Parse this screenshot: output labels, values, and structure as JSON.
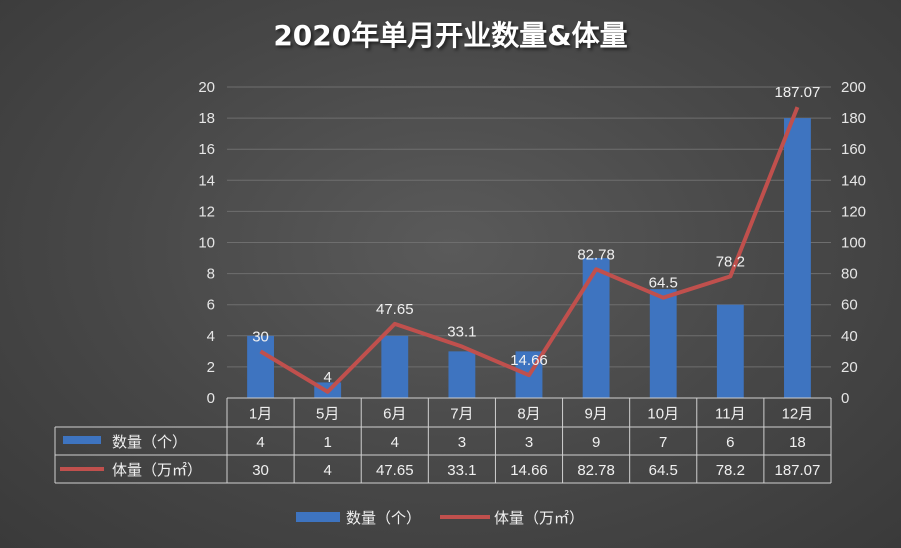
{
  "chart_data": {
    "type": "bar",
    "title": "2020年单月开业数量&体量",
    "categories": [
      "1月",
      "5月",
      "6月",
      "7月",
      "8月",
      "9月",
      "10月",
      "11月",
      "12月"
    ],
    "series": [
      {
        "name": "数量（个）",
        "type": "bar",
        "axis": "left",
        "color": "#3e74c0",
        "values": [
          4,
          1,
          4,
          3,
          3,
          9,
          7,
          6,
          18
        ],
        "value_labels": [
          "4",
          "1",
          "4",
          "3",
          "3",
          "9",
          "7",
          "6",
          "18"
        ]
      },
      {
        "name": "体量（万㎡）",
        "type": "line",
        "axis": "right",
        "color": "#c0504d",
        "values": [
          30,
          4,
          47.65,
          33.1,
          14.66,
          82.78,
          64.5,
          78.2,
          187.07
        ],
        "value_labels": [
          "30",
          "4",
          "47.65",
          "33.1",
          "14.66",
          "82.78",
          "64.5",
          "78.2",
          "187.07"
        ]
      }
    ],
    "y_left": {
      "range": [
        0,
        20
      ],
      "ticks": [
        "0",
        "2",
        "4",
        "6",
        "8",
        "10",
        "12",
        "14",
        "16",
        "18",
        "20"
      ]
    },
    "y_right": {
      "range": [
        0,
        200
      ],
      "ticks": [
        "0",
        "20",
        "40",
        "60",
        "80",
        "100",
        "120",
        "140",
        "160",
        "180",
        "200"
      ]
    },
    "grid": true,
    "legend_position": "bottom",
    "data_table": true
  }
}
